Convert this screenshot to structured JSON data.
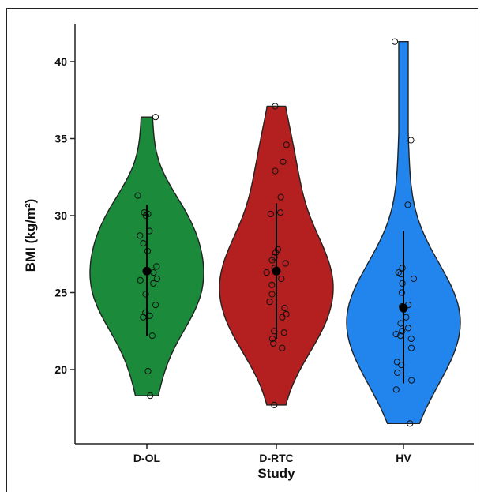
{
  "chart_data": {
    "type": "violin",
    "title": "",
    "xlabel": "Study",
    "ylabel": "BMI (kg/m²)",
    "categories": [
      "D-OL",
      "D-RTC",
      "HV"
    ],
    "ylim": [
      16.0,
      42.5
    ],
    "yticks": [
      20,
      25,
      30,
      35,
      40
    ],
    "grid": false,
    "legend": "none",
    "colors": {
      "D-OL": "#1b8a3a",
      "D-RTC": "#b3201f",
      "HV": "#2285ee",
      "outline": "#222222"
    },
    "groups": [
      {
        "name": "D-OL",
        "mean": 26.4,
        "sd_low": 22.2,
        "sd_high": 30.7,
        "range": [
          18.3,
          36.4
        ],
        "points": [
          36.4,
          31.3,
          30.1,
          30.2,
          30.0,
          29.0,
          28.7,
          28.2,
          27.7,
          26.7,
          26.3,
          25.8,
          25.9,
          25.6,
          24.9,
          24.2,
          23.7,
          23.5,
          23.4,
          22.2,
          19.9,
          18.3
        ]
      },
      {
        "name": "D-RTC",
        "mean": 26.4,
        "sd_low": 22.0,
        "sd_high": 30.8,
        "range": [
          17.7,
          37.1
        ],
        "points": [
          37.1,
          34.6,
          33.5,
          32.9,
          31.2,
          30.2,
          30.1,
          27.8,
          27.6,
          27.3,
          27.1,
          26.9,
          26.6,
          26.3,
          25.9,
          25.5,
          24.9,
          24.4,
          24.0,
          23.6,
          23.4,
          22.5,
          22.4,
          22.0,
          21.7,
          21.4,
          17.7
        ]
      },
      {
        "name": "HV",
        "mean": 24.0,
        "sd_low": 19.1,
        "sd_high": 29.0,
        "range": [
          16.5,
          41.3
        ],
        "points": [
          41.3,
          34.9,
          30.7,
          26.6,
          26.3,
          26.2,
          25.9,
          25.6,
          25.0,
          24.2,
          24.1,
          23.9,
          23.4,
          23.0,
          22.7,
          22.5,
          22.3,
          22.2,
          22.0,
          21.4,
          20.5,
          20.3,
          19.8,
          19.3,
          18.7,
          16.5
        ]
      }
    ]
  }
}
